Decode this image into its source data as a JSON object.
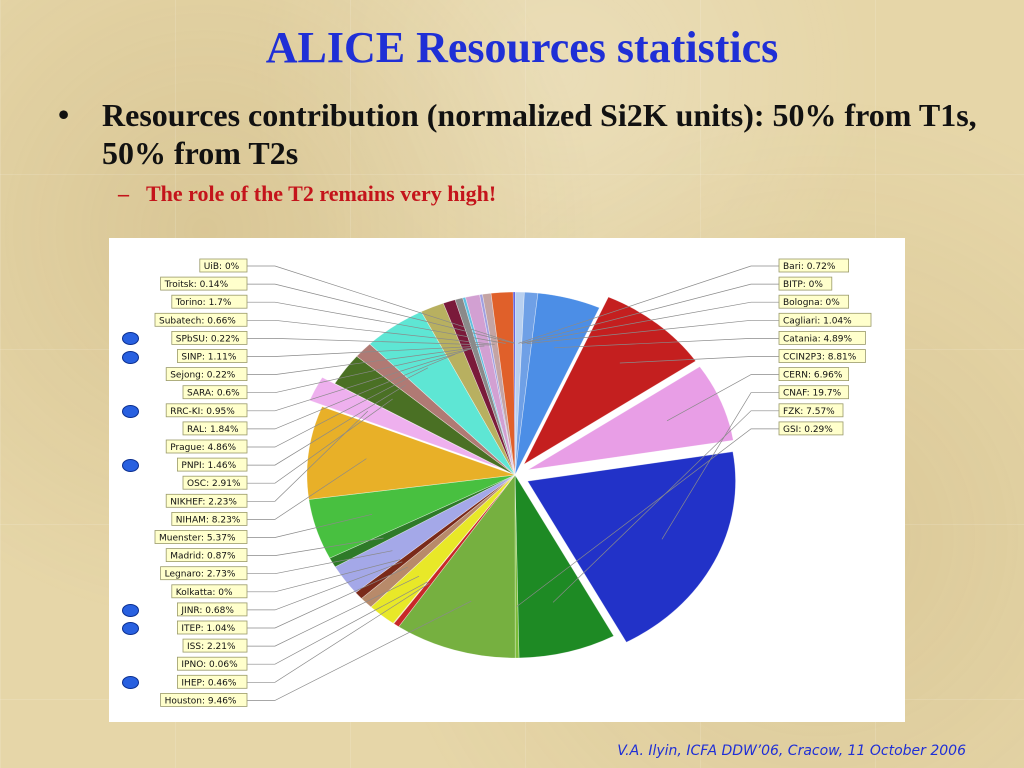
{
  "slide": {
    "title": "ALICE Resources statistics",
    "bullet_mark": "•",
    "bullet": "Resources contribution (normalized Si2K units): 50% from T1s, 50% from T2s",
    "sub_mark": "–",
    "sub_bullet": "The role of the T2 remains very high!",
    "footer": "V.A. Ilyin, ICFA DDW’06, Cracow, 11 October 2006"
  },
  "colors": {
    "title": "#1f2fd6",
    "sub_bullet": "#c4141b",
    "marker_dot": "#2860e0"
  },
  "marked_sites": [
    "SPbSU",
    "SINP",
    "RRC-KI",
    "PNPI",
    "JINR",
    "ITEP",
    "IHEP"
  ],
  "chart_data": {
    "type": "pie",
    "slices": [
      {
        "name": "Bari",
        "value": 0.72,
        "label": "Bari: 0.72%",
        "color": "#b8d0f0"
      },
      {
        "name": "BITP",
        "value": 0,
        "label": "BITP: 0%",
        "color": "#c0c0c0"
      },
      {
        "name": "Bologna",
        "value": 0,
        "label": "Bologna: 0%",
        "color": "#d0d0d0"
      },
      {
        "name": "Cagliari",
        "value": 1.04,
        "label": "Cagliari: 1.04%",
        "color": "#6fa0e6"
      },
      {
        "name": "Catania",
        "value": 4.89,
        "label": "Catania: 4.89%",
        "color": "#4c8ee6"
      },
      {
        "name": "CCIN2P3",
        "value": 8.81,
        "label": "CCIN2P3: 8.81%",
        "color": "#c41f1f",
        "exploded": true
      },
      {
        "name": "CERN",
        "value": 6.96,
        "label": "CERN: 6.96%",
        "color": "#e89ee6",
        "exploded": true
      },
      {
        "name": "CNAF",
        "value": 19.7,
        "label": "CNAF: 19.7%",
        "color": "#2232c8",
        "exploded": true
      },
      {
        "name": "FZK",
        "value": 7.57,
        "label": "FZK: 7.57%",
        "color": "#1e8a24"
      },
      {
        "name": "GSI",
        "value": 0.29,
        "label": "GSI: 0.29%",
        "color": "#7dbd3a"
      },
      {
        "name": "Houston",
        "value": 9.46,
        "label": "Houston: 9.46%",
        "color": "#76b040"
      },
      {
        "name": "IHEP",
        "value": 0.46,
        "label": "IHEP: 0.46%",
        "color": "#c82828"
      },
      {
        "name": "IPNO",
        "value": 0.06,
        "label": "IPNO: 0.06%",
        "color": "#e0e070"
      },
      {
        "name": "ISS",
        "value": 2.21,
        "label": "ISS: 2.21%",
        "color": "#e8e828"
      },
      {
        "name": "ITEP",
        "value": 1.04,
        "label": "ITEP: 1.04%",
        "color": "#b88a6a"
      },
      {
        "name": "JINR",
        "value": 0.68,
        "label": "JINR: 0.68%",
        "color": "#7a2a1a"
      },
      {
        "name": "Kolkatta",
        "value": 0,
        "label": "Kolkatta: 0%",
        "color": "#a0a0a0"
      },
      {
        "name": "Legnaro",
        "value": 2.73,
        "label": "Legnaro: 2.73%",
        "color": "#a4a8e8"
      },
      {
        "name": "Madrid",
        "value": 0.87,
        "label": "Madrid: 0.87%",
        "color": "#2e7a28"
      },
      {
        "name": "Muenster",
        "value": 5.37,
        "label": "Muenster: 5.37%",
        "color": "#48c040"
      },
      {
        "name": "NIHAM",
        "value": 8.23,
        "label": "NIHAM: 8.23%",
        "color": "#e8b028"
      },
      {
        "name": "NIKHEF",
        "value": 2.23,
        "label": "NIKHEF: 2.23%",
        "color": "#eeb0ee",
        "exploded": true
      },
      {
        "name": "OSC",
        "value": 2.91,
        "label": "OSC: 2.91%",
        "color": "#4a7024"
      },
      {
        "name": "PNPI",
        "value": 1.46,
        "label": "PNPI: 1.46%",
        "color": "#b07a74"
      },
      {
        "name": "Prague",
        "value": 4.86,
        "label": "Prague: 4.86%",
        "color": "#5ee6d4"
      },
      {
        "name": "RAL",
        "value": 1.84,
        "label": "RAL: 1.84%",
        "color": "#b8b060"
      },
      {
        "name": "RRC-KI",
        "value": 0.95,
        "label": "RRC-KI: 0.95%",
        "color": "#7a1a3a"
      },
      {
        "name": "SARA",
        "value": 0.6,
        "label": "SARA: 0.6%",
        "color": "#8a8a8a"
      },
      {
        "name": "Sejong",
        "value": 0.22,
        "label": "Sejong: 0.22%",
        "color": "#60c0e0"
      },
      {
        "name": "SINP",
        "value": 1.11,
        "label": "SINP: 1.11%",
        "color": "#d2a0d2"
      },
      {
        "name": "SPbSU",
        "value": 0.22,
        "label": "SPbSU: 0.22%",
        "color": "#a0a0e0"
      },
      {
        "name": "Subatech",
        "value": 0.66,
        "label": "Subatech: 0.66%",
        "color": "#c4a4a4"
      },
      {
        "name": "Torino",
        "value": 1.7,
        "label": "Torino: 1.7%",
        "color": "#e0602a"
      },
      {
        "name": "Troitsk",
        "value": 0.14,
        "label": "Troitsk: 0.14%",
        "color": "#4848d8"
      },
      {
        "name": "UiB",
        "value": 0,
        "label": "UiB: 0%",
        "color": "#6a6ae8"
      }
    ]
  }
}
